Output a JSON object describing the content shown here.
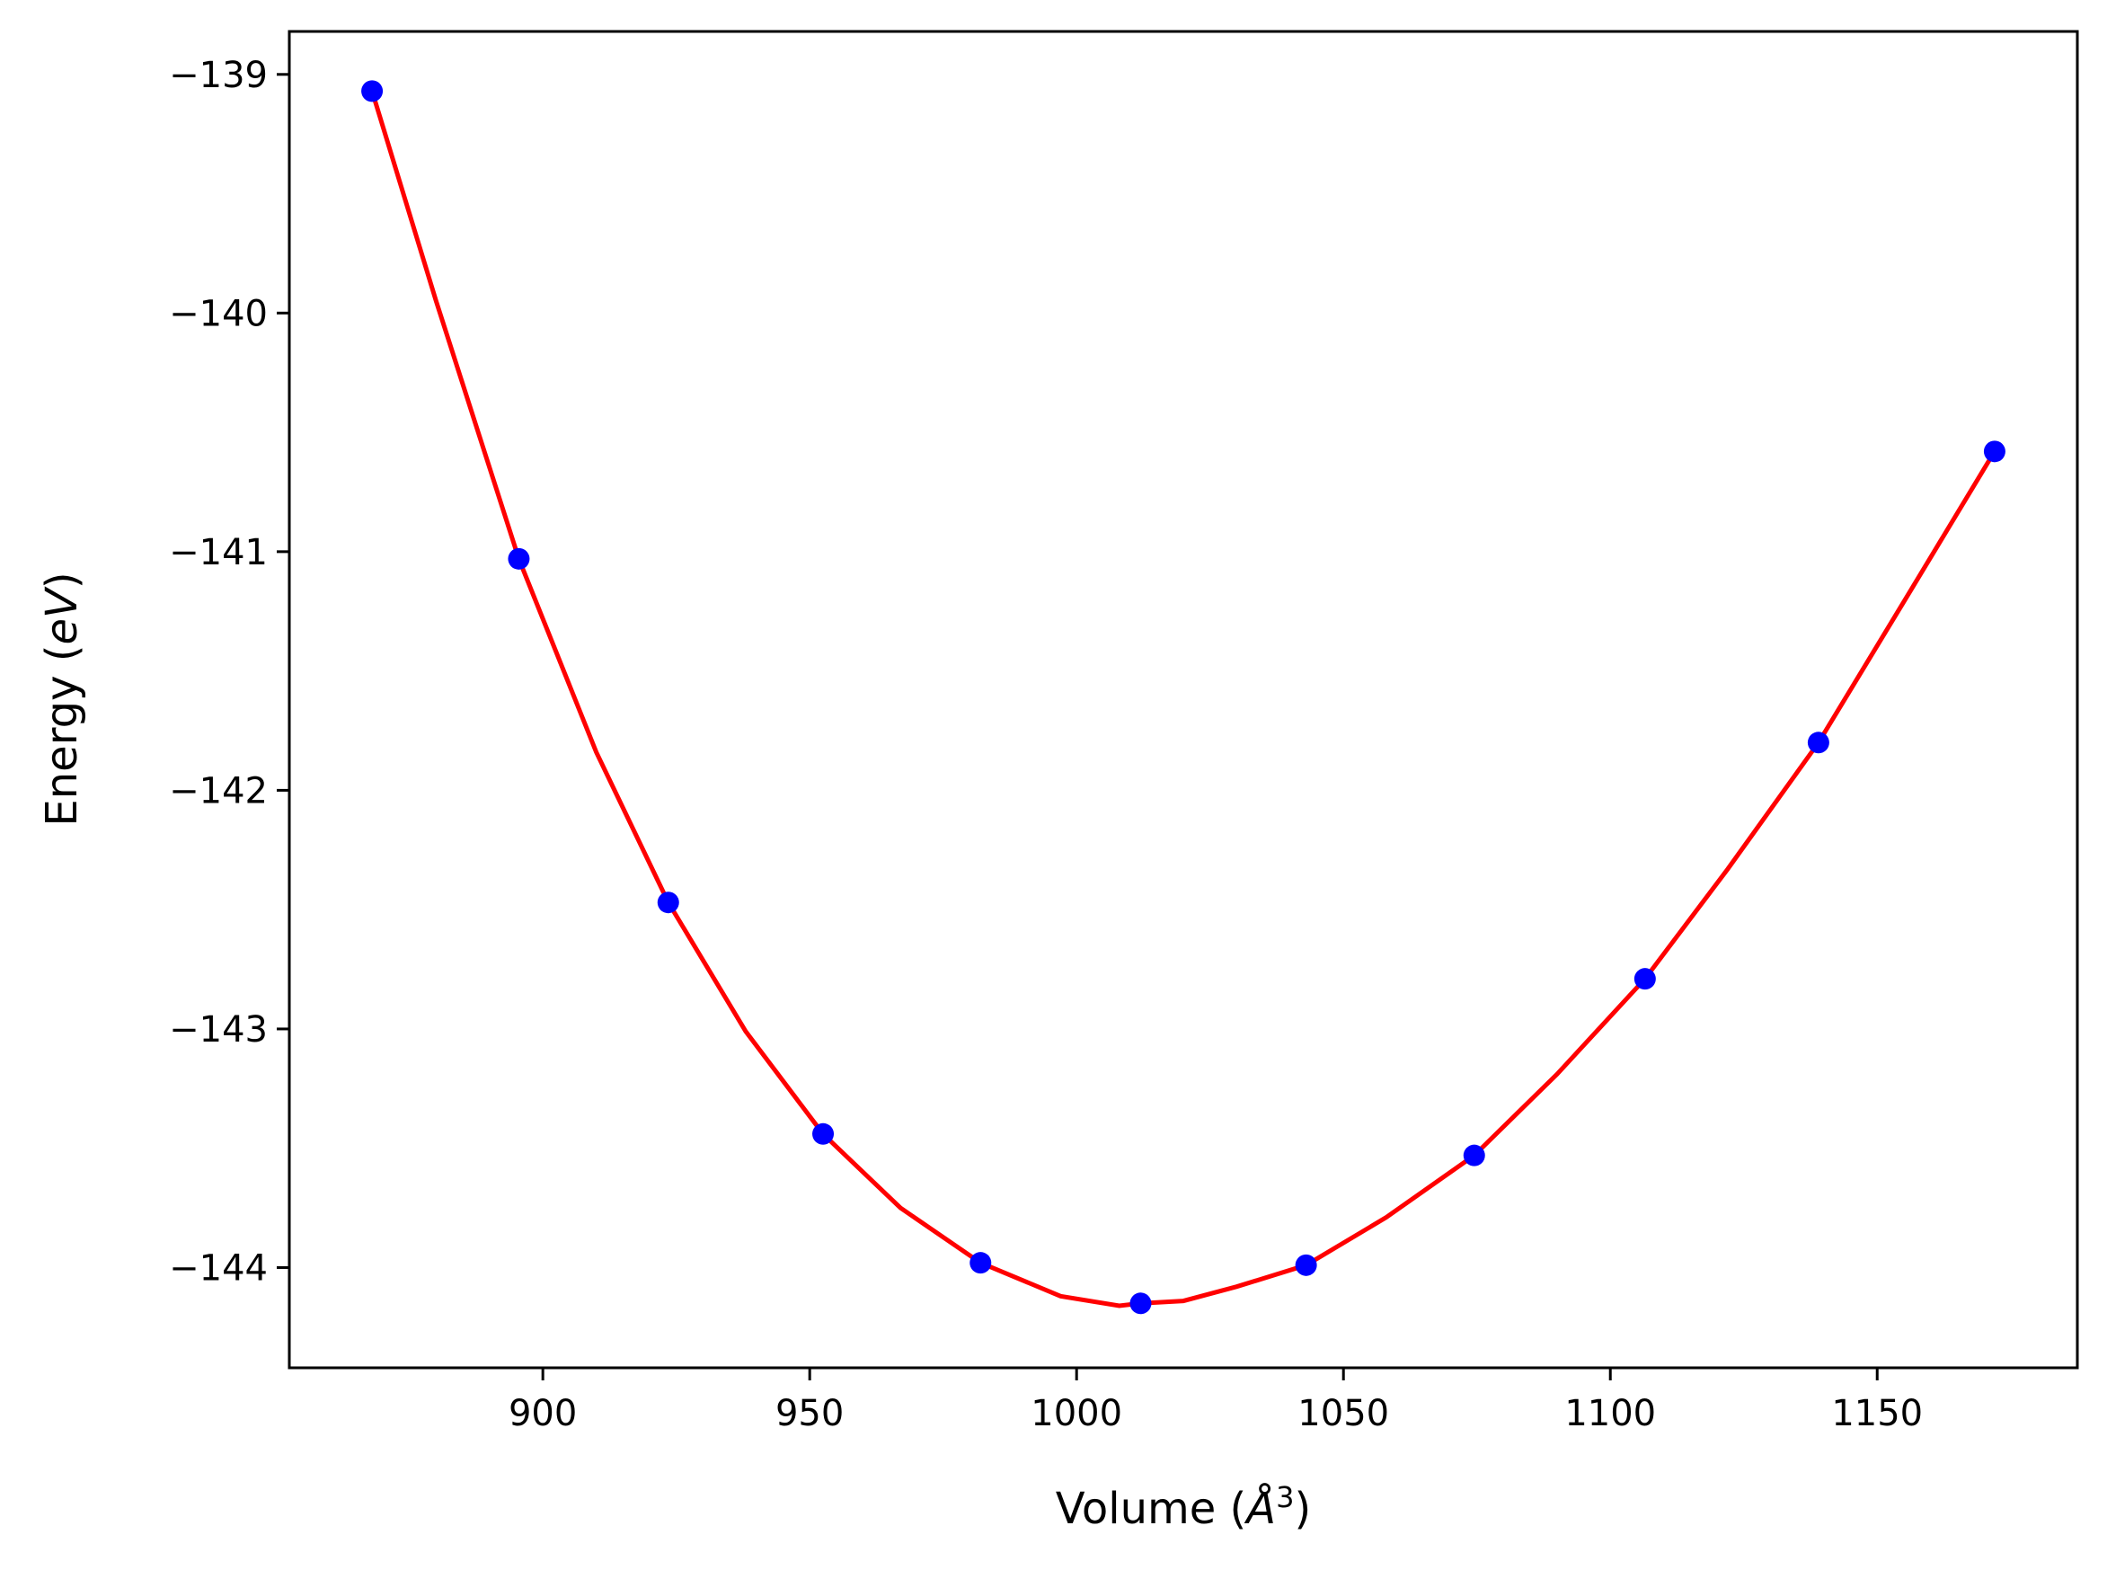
{
  "chart_data": {
    "type": "scatter",
    "title": "",
    "xlabel_text": "Volume (",
    "xlabel_unit": "Å",
    "xlabel_sup": "3",
    "xlabel_close": ")",
    "ylabel_text": "Energy (",
    "ylabel_unit": "eV",
    "ylabel_close": ")",
    "xlim": [
      852.5,
      1187.5
    ],
    "ylim": [
      -144.42,
      -138.82
    ],
    "xticks": [
      900,
      950,
      1000,
      1050,
      1100,
      1150
    ],
    "xtick_labels": [
      "900",
      "950",
      "1000",
      "1050",
      "1100",
      "1150"
    ],
    "yticks": [
      -139,
      -140,
      -141,
      -142,
      -143,
      -144
    ],
    "ytick_labels": [
      "−139",
      "−140",
      "−141",
      "−142",
      "−143",
      "−144"
    ],
    "grid": false,
    "colors": {
      "points": "#0000ff",
      "fit_line": "#ff0000",
      "axes": "#000000"
    },
    "series": [
      {
        "kind": "points",
        "x": [
          868,
          895.5,
          923.5,
          952.5,
          982,
          1012,
          1043,
          1074.5,
          1106.5,
          1139,
          1172
        ],
        "y": [
          -139.07,
          -141.03,
          -142.47,
          -143.44,
          -143.98,
          -144.15,
          -143.99,
          -143.53,
          -142.79,
          -141.8,
          -140.58
        ]
      },
      {
        "kind": "fit-line",
        "x": [
          868,
          880,
          895.5,
          910,
          923.5,
          938,
          952.5,
          967,
          982,
          997,
          1008,
          1012,
          1020,
          1030,
          1043,
          1058,
          1074.5,
          1090,
          1106.5,
          1122,
          1139,
          1155,
          1172
        ],
        "y": [
          -139.07,
          -139.95,
          -141.03,
          -141.84,
          -142.47,
          -143.01,
          -143.44,
          -143.75,
          -143.98,
          -144.12,
          -144.16,
          -144.15,
          -144.14,
          -144.08,
          -143.99,
          -143.79,
          -143.53,
          -143.19,
          -142.79,
          -142.33,
          -141.8,
          -141.21,
          -140.58
        ]
      }
    ]
  }
}
